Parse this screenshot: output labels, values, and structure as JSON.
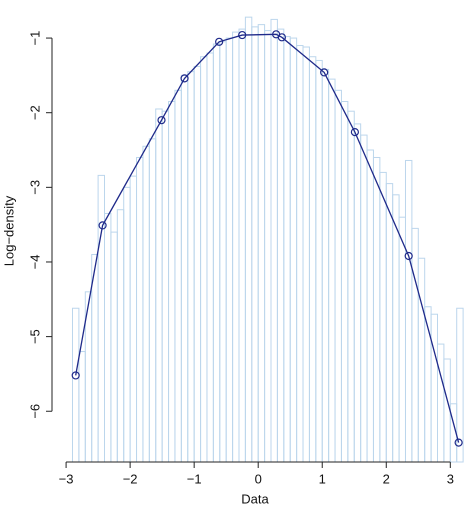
{
  "chart_data": {
    "type": "histogram_line",
    "xlabel": "Data",
    "ylabel": "Log−density",
    "bins": [
      -2.9,
      -2.8,
      -2.7,
      -2.6,
      -2.5,
      -2.4,
      -2.3,
      -2.2,
      -2.1,
      -2.0,
      -1.9,
      -1.8,
      -1.7,
      -1.6,
      -1.5,
      -1.4,
      -1.3,
      -1.2,
      -1.1,
      -1.0,
      -0.9,
      -0.8,
      -0.7,
      -0.6,
      -0.5,
      -0.4,
      -0.3,
      -0.2,
      -0.1,
      0.0,
      0.1,
      0.2,
      0.3,
      0.4,
      0.5,
      0.6,
      0.7,
      0.8,
      0.9,
      1.0,
      1.1,
      1.2,
      1.3,
      1.4,
      1.5,
      1.6,
      1.7,
      1.8,
      1.9,
      2.0,
      2.1,
      2.2,
      2.3,
      2.4,
      2.5,
      2.6,
      2.7,
      2.8,
      2.9,
      3.0,
      3.1,
      3.2
    ],
    "counts": [
      -4.62,
      -5.2,
      -4.4,
      -3.9,
      -2.84,
      -3.35,
      -3.6,
      -3.3,
      -3.0,
      -2.85,
      -2.6,
      -2.45,
      -2.35,
      -1.95,
      -1.98,
      -1.85,
      -1.7,
      -1.5,
      -1.45,
      -1.38,
      -1.25,
      -1.2,
      -1.08,
      -1.05,
      -1.0,
      -0.92,
      -0.88,
      -0.72,
      -0.85,
      -0.82,
      -0.9,
      -0.75,
      -0.88,
      -0.98,
      -1.0,
      -1.1,
      -1.12,
      -1.25,
      -1.3,
      -1.42,
      -1.55,
      -1.7,
      -1.85,
      -1.98,
      -2.15,
      -2.3,
      -2.5,
      -2.6,
      -2.8,
      -2.95,
      -3.1,
      -3.4,
      -2.64,
      -3.55,
      -3.95,
      -4.6,
      -4.7,
      -5.1,
      -5.3,
      -5.9,
      -4.62
    ],
    "bar_color": "#bcd6ec",
    "line": {
      "color": "#1f2a8a",
      "x": [
        -2.85,
        -2.43,
        -1.51,
        -1.15,
        -0.61,
        -0.25,
        0.28,
        0.37,
        1.03,
        1.51,
        2.35,
        3.13
      ],
      "y": [
        -5.52,
        -3.51,
        -2.1,
        -1.54,
        -1.05,
        -0.96,
        -0.95,
        -0.99,
        -1.46,
        -2.26,
        -3.92,
        -6.42
      ]
    },
    "xlim": [
      -3.22,
      3.37
    ],
    "ylim": [
      -6.68,
      -0.49
    ],
    "xticks": [
      {
        "value": -3,
        "label": "−3"
      },
      {
        "value": -2,
        "label": "−2"
      },
      {
        "value": -1,
        "label": "−1"
      },
      0,
      1,
      2,
      3
    ],
    "yticks": [
      {
        "value": -1,
        "label": "−1"
      },
      {
        "value": -2,
        "label": "−2"
      },
      {
        "value": -3,
        "label": "−3"
      },
      {
        "value": -4,
        "label": "−4"
      },
      {
        "value": -5,
        "label": "−5"
      },
      {
        "value": -6,
        "label": "−6"
      }
    ]
  }
}
